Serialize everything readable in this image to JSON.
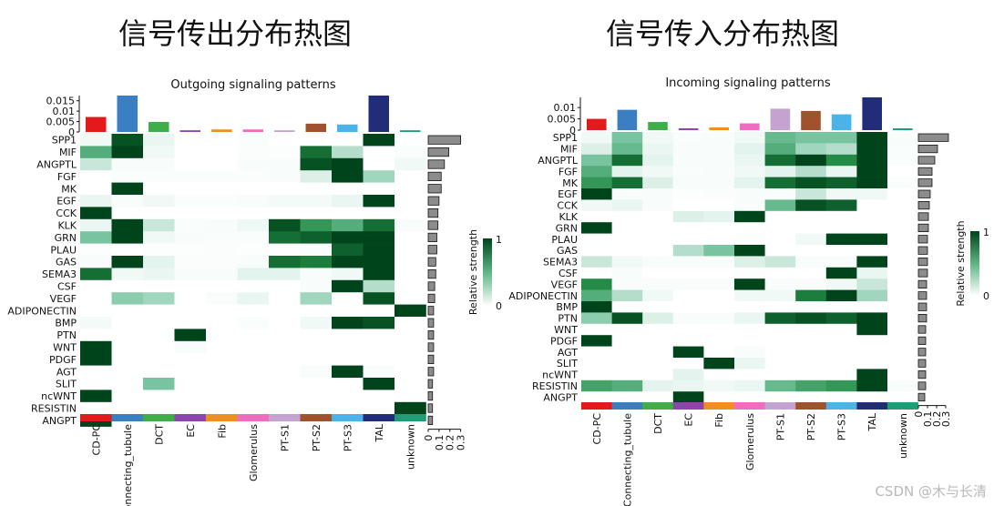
{
  "page": {
    "title_left": "信号传出分布热图",
    "title_right": "信号传入分布热图",
    "watermark": "CSDN @木与长清"
  },
  "chart_data": [
    {
      "type": "heatmap",
      "id": "outgoing",
      "title": "Outgoing signaling patterns",
      "legend_title": "Relative strength",
      "legend_range": [
        0,
        1
      ],
      "legend_ticks": [
        "0",
        "1"
      ],
      "cell_types": [
        "CD-PC",
        "Connecting_tubule",
        "DCT",
        "EC",
        "Fib",
        "Glomerulus",
        "PT-S1",
        "PT-S2",
        "PT-S3",
        "TAL",
        "unknown"
      ],
      "cell_colors": [
        "#e31a1c",
        "#3a7fc1",
        "#3fae49",
        "#8e44ad",
        "#ef8f1f",
        "#f06cc0",
        "#c4a3d1",
        "#a0522d",
        "#4ab3e8",
        "#222d7a",
        "#1f9e76"
      ],
      "pathways": [
        "SPP1",
        "MIF",
        "ANGPTL",
        "FGF",
        "MK",
        "EGF",
        "CCK",
        "KLK",
        "GRN",
        "PLAU",
        "GAS",
        "SEMA3",
        "CSF",
        "VEGF",
        "ADIPONECTIN",
        "BMP",
        "PTN",
        "WNT",
        "PDGF",
        "AGT",
        "SLIT",
        "ncWNT",
        "RESISTIN",
        "ANGPT"
      ],
      "values": [
        [
          0.1,
          0.95,
          0.15,
          0.0,
          0.0,
          0.04,
          0.0,
          0.0,
          0.0,
          1.0,
          0.0
        ],
        [
          0.6,
          1.0,
          0.1,
          0.0,
          0.0,
          0.03,
          0.02,
          0.85,
          0.35,
          0.0,
          0.04
        ],
        [
          0.3,
          0.05,
          0.05,
          0.0,
          0.0,
          0.05,
          0.05,
          0.95,
          1.0,
          0.0,
          0.1
        ],
        [
          0.0,
          0.04,
          0.04,
          0.03,
          0.03,
          0.03,
          0.05,
          0.25,
          1.0,
          0.4,
          0.0
        ],
        [
          0.0,
          1.0,
          0.0,
          0.0,
          0.0,
          0.0,
          0.0,
          0.0,
          0.0,
          0.0,
          0.0
        ],
        [
          0.15,
          0.05,
          0.1,
          0.04,
          0.04,
          0.05,
          0.08,
          0.08,
          0.15,
          1.0,
          0.0
        ],
        [
          1.0,
          0.0,
          0.0,
          0.0,
          0.0,
          0.0,
          0.0,
          0.0,
          0.0,
          0.0,
          0.0
        ],
        [
          0.15,
          1.0,
          0.3,
          0.04,
          0.05,
          0.12,
          0.95,
          0.7,
          0.6,
          0.85,
          0.05
        ],
        [
          0.5,
          1.0,
          0.1,
          0.05,
          0.04,
          0.04,
          0.85,
          0.9,
          1.0,
          1.0,
          0.0
        ],
        [
          0.02,
          0.0,
          0.02,
          0.02,
          0.03,
          0.02,
          0.02,
          0.04,
          0.9,
          1.0,
          0.0
        ],
        [
          0.05,
          1.0,
          0.2,
          0.03,
          0.03,
          0.05,
          0.85,
          0.8,
          1.0,
          1.0,
          0.0
        ],
        [
          0.85,
          0.1,
          0.15,
          0.05,
          0.05,
          0.2,
          0.2,
          0.05,
          0.1,
          1.0,
          0.0
        ],
        [
          0.0,
          0.0,
          0.0,
          0.0,
          0.0,
          0.0,
          0.0,
          0.05,
          1.0,
          0.35,
          0.0
        ],
        [
          0.0,
          0.45,
          0.4,
          0.0,
          0.05,
          0.15,
          0.0,
          0.4,
          0.0,
          0.95,
          0.0
        ],
        [
          0.0,
          0.0,
          0.0,
          0.0,
          0.0,
          0.0,
          0.0,
          0.0,
          0.0,
          0.0,
          1.0
        ],
        [
          0.08,
          0.0,
          0.0,
          0.0,
          0.0,
          0.04,
          0.0,
          0.1,
          1.0,
          0.95,
          0.0
        ],
        [
          0.0,
          0.0,
          0.0,
          1.0,
          0.0,
          0.0,
          0.0,
          0.0,
          0.0,
          0.0,
          0.0
        ],
        [
          1.0,
          0.0,
          0.0,
          0.05,
          0.0,
          0.0,
          0.0,
          0.0,
          0.0,
          0.0,
          0.0
        ],
        [
          1.0,
          0.0,
          0.0,
          0.0,
          0.0,
          0.0,
          0.0,
          0.0,
          0.0,
          0.0,
          0.0
        ],
        [
          0.0,
          0.0,
          0.0,
          0.0,
          0.0,
          0.0,
          0.0,
          0.05,
          1.0,
          0.05,
          0.0
        ],
        [
          0.0,
          0.0,
          0.5,
          0.0,
          0.0,
          0.0,
          0.0,
          0.0,
          0.0,
          1.0,
          0.0
        ],
        [
          1.0,
          0.0,
          0.0,
          0.0,
          0.0,
          0.0,
          0.0,
          0.0,
          0.0,
          0.0,
          0.0
        ],
        [
          0.0,
          0.0,
          0.0,
          0.0,
          0.0,
          0.0,
          0.0,
          0.0,
          0.0,
          0.0,
          1.0
        ],
        [
          1.0,
          0.0,
          0.0,
          0.0,
          0.0,
          0.0,
          0.0,
          0.0,
          0.0,
          0.0,
          0.0
        ]
      ],
      "col_totals": [
        0.0072,
        0.0175,
        0.0048,
        0.0008,
        0.0012,
        0.0012,
        0.0008,
        0.004,
        0.0036,
        0.0175,
        0.0008
      ],
      "col_axis_ticks": [
        0,
        0.005,
        0.01,
        0.015
      ],
      "col_axis_labels": [
        "0",
        "0.005",
        "0.01",
        "0.015"
      ],
      "col_axis_max": 0.0175,
      "row_totals": [
        0.3,
        0.19,
        0.15,
        0.12,
        0.12,
        0.1,
        0.09,
        0.09,
        0.08,
        0.08,
        0.07,
        0.07,
        0.06,
        0.06,
        0.05,
        0.05,
        0.05,
        0.05,
        0.05,
        0.05,
        0.04,
        0.04,
        0.04,
        0.04
      ],
      "row_axis_ticks": [
        0,
        0.1,
        0.2,
        0.3
      ],
      "row_axis_labels": [
        "0",
        "0.1",
        "0.2",
        "0.3"
      ],
      "row_axis_max": 0.32
    },
    {
      "type": "heatmap",
      "id": "incoming",
      "title": "Incoming signaling patterns",
      "legend_title": "Relative strength",
      "legend_range": [
        0,
        1
      ],
      "legend_ticks": [
        "0",
        "1"
      ],
      "cell_types": [
        "CD-PC",
        "Connecting_tubule",
        "DCT",
        "EC",
        "Fib",
        "Glomerulus",
        "PT-S1",
        "PT-S2",
        "PT-S3",
        "TAL",
        "unknown"
      ],
      "cell_colors": [
        "#e31a1c",
        "#3a7fc1",
        "#3fae49",
        "#8e44ad",
        "#ef8f1f",
        "#f06cc0",
        "#c4a3d1",
        "#a0522d",
        "#4ab3e8",
        "#222d7a",
        "#1f9e76"
      ],
      "pathways": [
        "SPP1",
        "MIF",
        "ANGPTL",
        "FGF",
        "MK",
        "EGF",
        "CCK",
        "KLK",
        "GRN",
        "PLAU",
        "GAS",
        "SEMA3",
        "CSF",
        "VEGF",
        "ADIPONECTIN",
        "BMP",
        "PTN",
        "WNT",
        "PDGF",
        "AGT",
        "SLIT",
        "ncWNT",
        "RESISTIN",
        "ANGPT"
      ],
      "values": [
        [
          0.1,
          0.5,
          0.1,
          0.04,
          0.05,
          0.1,
          0.55,
          0.5,
          0.5,
          1.0,
          0.05
        ],
        [
          0.25,
          0.55,
          0.15,
          0.05,
          0.05,
          0.2,
          0.6,
          0.4,
          0.35,
          1.0,
          0.04
        ],
        [
          0.5,
          0.85,
          0.2,
          0.05,
          0.05,
          0.15,
          0.85,
          1.0,
          0.75,
          1.0,
          0.04
        ],
        [
          0.6,
          0.2,
          0.1,
          0.04,
          0.05,
          0.1,
          0.2,
          0.35,
          0.15,
          1.0,
          0.0
        ],
        [
          0.7,
          0.85,
          0.25,
          0.05,
          0.05,
          0.2,
          0.85,
          0.95,
          0.9,
          1.0,
          0.04
        ],
        [
          1.0,
          0.05,
          0.05,
          0.02,
          0.03,
          0.05,
          0.05,
          0.3,
          0.1,
          0.1,
          0.0
        ],
        [
          0.1,
          0.15,
          0.05,
          0.0,
          0.0,
          0.05,
          0.55,
          0.95,
          0.9,
          0.0,
          0.0
        ],
        [
          0.0,
          0.0,
          0.0,
          0.25,
          0.2,
          1.0,
          0.0,
          0.0,
          0.0,
          0.0,
          0.0
        ],
        [
          1.0,
          0.0,
          0.0,
          0.0,
          0.0,
          0.0,
          0.0,
          0.0,
          0.0,
          0.0,
          0.0
        ],
        [
          0.0,
          0.0,
          0.0,
          0.0,
          0.0,
          0.02,
          0.0,
          0.1,
          1.0,
          1.0,
          0.0
        ],
        [
          0.0,
          0.0,
          0.0,
          0.35,
          0.5,
          1.0,
          0.0,
          0.0,
          0.0,
          0.0,
          0.0
        ],
        [
          0.3,
          0.1,
          0.05,
          0.05,
          0.05,
          0.25,
          0.3,
          0.05,
          0.05,
          1.0,
          0.0
        ],
        [
          0.0,
          0.05,
          0.0,
          0.0,
          0.0,
          0.02,
          0.0,
          0.0,
          1.0,
          0.15,
          0.0
        ],
        [
          0.75,
          0.05,
          0.05,
          0.05,
          0.05,
          1.0,
          0.05,
          0.05,
          0.1,
          0.3,
          0.0
        ],
        [
          0.6,
          0.35,
          0.1,
          0.0,
          0.0,
          0.1,
          0.1,
          0.8,
          1.0,
          0.4,
          0.0
        ],
        [
          1.0,
          0.0,
          0.0,
          0.0,
          0.0,
          0.0,
          0.0,
          0.0,
          0.0,
          0.0,
          0.0
        ],
        [
          0.45,
          0.95,
          0.25,
          0.05,
          0.05,
          0.15,
          0.9,
          0.95,
          0.9,
          1.0,
          0.0
        ],
        [
          0.0,
          0.0,
          0.0,
          0.0,
          0.0,
          0.0,
          0.0,
          0.0,
          0.0,
          1.0,
          0.0
        ],
        [
          1.0,
          0.0,
          0.0,
          0.0,
          0.0,
          0.0,
          0.0,
          0.0,
          0.0,
          0.0,
          0.0
        ],
        [
          0.0,
          0.0,
          0.0,
          1.0,
          0.0,
          0.05,
          0.0,
          0.0,
          0.0,
          0.0,
          0.0
        ],
        [
          0.0,
          0.0,
          0.0,
          0.0,
          1.0,
          0.15,
          0.0,
          0.0,
          0.0,
          0.0,
          0.0
        ],
        [
          0.0,
          0.0,
          0.0,
          0.2,
          0.0,
          0.0,
          0.0,
          0.0,
          0.0,
          1.0,
          0.0
        ],
        [
          0.65,
          0.6,
          0.2,
          0.15,
          0.1,
          0.15,
          0.55,
          0.65,
          0.7,
          1.0,
          0.05
        ],
        [
          0.0,
          0.0,
          0.0,
          1.0,
          0.0,
          0.0,
          0.0,
          0.0,
          0.0,
          0.0,
          0.0
        ]
      ],
      "col_totals": [
        0.005,
        0.009,
        0.0036,
        0.0008,
        0.0012,
        0.003,
        0.0095,
        0.0085,
        0.007,
        0.0145,
        0.0008
      ],
      "col_axis_ticks": [
        0,
        0.005,
        0.01
      ],
      "col_axis_labels": [
        "0",
        "0.005",
        "0.01"
      ],
      "col_axis_max": 0.0145,
      "row_totals": [
        0.33,
        0.21,
        0.18,
        0.15,
        0.15,
        0.13,
        0.12,
        0.11,
        0.11,
        0.1,
        0.1,
        0.1,
        0.1,
        0.09,
        0.09,
        0.09,
        0.09,
        0.08,
        0.08,
        0.08,
        0.08,
        0.08,
        0.08,
        0.07
      ],
      "row_axis_ticks": [
        0,
        0.1,
        0.2,
        0.3
      ],
      "row_axis_labels": [
        "0",
        "0.1",
        "0.2",
        "0.3"
      ],
      "row_axis_max": 0.35
    }
  ]
}
